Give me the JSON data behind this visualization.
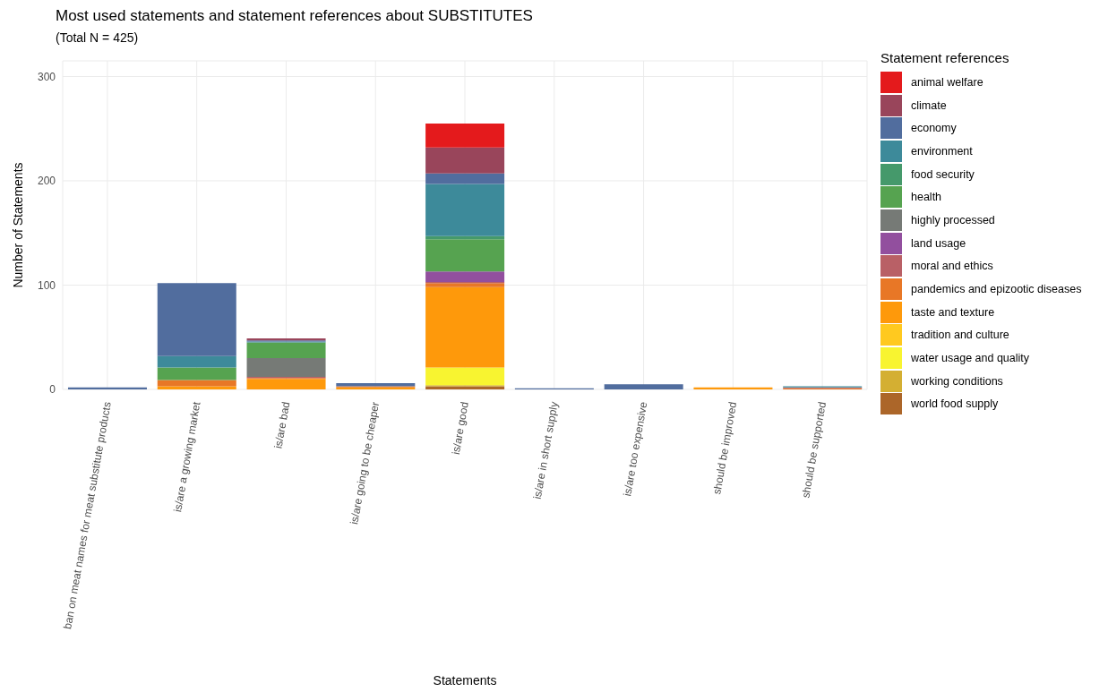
{
  "chart_data": {
    "type": "bar",
    "title": "Most used statements and statement references about SUBSTITUTES",
    "subtitle": "(Total N = 425)",
    "xlabel": "Statements",
    "ylabel": "Number of Statements",
    "legend_title": "Statement references",
    "categories": [
      "ban on meat names for meat substitute products",
      "is/are a growing market",
      "is/are bad",
      "is/are going to be cheaper",
      "is/are good",
      "is/are in short supply",
      "is/are too expensive",
      "should be improved",
      "should be supported"
    ],
    "stacked": true,
    "ylim": [
      0,
      315
    ],
    "yticks": [
      0,
      100,
      200,
      300
    ],
    "grid": true,
    "legend": "right",
    "series": [
      {
        "name": "world food supply",
        "color": "#ac6629",
        "values": [
          0,
          0,
          0,
          0,
          3,
          0,
          0,
          0,
          0
        ]
      },
      {
        "name": "working conditions",
        "color": "#d4af32",
        "values": [
          0,
          0,
          0,
          0,
          1,
          0,
          0,
          0,
          0
        ]
      },
      {
        "name": "water usage and quality",
        "color": "#f8f430",
        "values": [
          0,
          0,
          0,
          0,
          17,
          0,
          0,
          0,
          0
        ]
      },
      {
        "name": "tradition and culture",
        "color": "#ffc91f",
        "values": [
          0,
          0,
          0,
          0,
          0,
          0,
          0,
          0,
          0
        ]
      },
      {
        "name": "taste and texture",
        "color": "#fe990b",
        "values": [
          0,
          3,
          10,
          2,
          77,
          0,
          0,
          2,
          0
        ]
      },
      {
        "name": "pandemics and epizootic diseases",
        "color": "#e87726",
        "values": [
          0,
          6,
          1,
          1,
          4,
          0,
          0,
          0,
          1
        ]
      },
      {
        "name": "moral and ethics",
        "color": "#b96066",
        "values": [
          0,
          0,
          1,
          0,
          1,
          0,
          0,
          0,
          1
        ]
      },
      {
        "name": "land usage",
        "color": "#924f9e",
        "values": [
          0,
          0,
          0,
          0,
          10,
          0,
          0,
          0,
          0
        ]
      },
      {
        "name": "highly processed",
        "color": "#767a76",
        "values": [
          0,
          0,
          18,
          0,
          0,
          0,
          0,
          0,
          0
        ]
      },
      {
        "name": "health",
        "color": "#56a350",
        "values": [
          0,
          12,
          15,
          0,
          31,
          0,
          0,
          0,
          0
        ]
      },
      {
        "name": "food security",
        "color": "#45996b",
        "values": [
          0,
          0,
          0,
          0,
          3,
          0,
          0,
          0,
          0
        ]
      },
      {
        "name": "environment",
        "color": "#3d8a9a",
        "values": [
          0,
          11,
          1,
          0,
          50,
          0,
          0,
          0,
          1
        ]
      },
      {
        "name": "economy",
        "color": "#516d9e",
        "values": [
          2,
          70,
          1,
          3,
          10,
          1,
          5,
          0,
          0
        ]
      },
      {
        "name": "climate",
        "color": "#99455b",
        "values": [
          0,
          0,
          2,
          0,
          25,
          0,
          0,
          0,
          0
        ]
      },
      {
        "name": "animal welfare",
        "color": "#e41a1c",
        "values": [
          0,
          0,
          0,
          0,
          23,
          0,
          0,
          0,
          0
        ]
      }
    ]
  }
}
